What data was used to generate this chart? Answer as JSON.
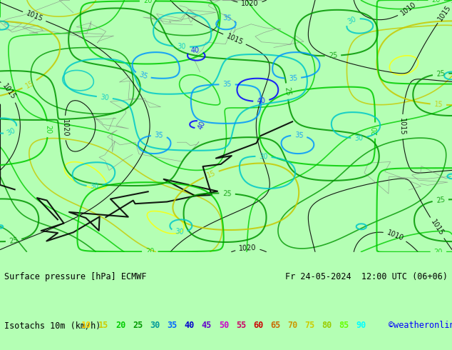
{
  "title_left": "Surface pressure [hPa] ECMWF",
  "title_right": "Fr 24-05-2024  12:00 UTC (06+06)",
  "legend_label": "Isotachs 10m (km/h)",
  "legend_values": [
    10,
    15,
    20,
    25,
    30,
    35,
    40,
    45,
    50,
    55,
    60,
    65,
    70,
    75,
    80,
    85,
    90
  ],
  "legend_colors": [
    "#ffff00",
    "#c8ff00",
    "#00ff00",
    "#00c800",
    "#00c8c8",
    "#0096ff",
    "#0000ff",
    "#9600ff",
    "#ff00ff",
    "#ff0096",
    "#ff0000",
    "#ff6400",
    "#ff9600",
    "#ffc800",
    "#c8c800",
    "#c8ff00",
    "#00ffff"
  ],
  "watermark": "©weatheronline.co.uk",
  "watermark_color": "#0000ff",
  "bg_color": "#b4ffb4",
  "map_bg": "#b4ffb4",
  "border_color": "#000000",
  "figure_width": 6.34,
  "figure_height": 4.9,
  "dpi": 100,
  "bottom_bar_height": 0.14,
  "legend_fontsize": 8.5,
  "title_fontsize": 8.5
}
